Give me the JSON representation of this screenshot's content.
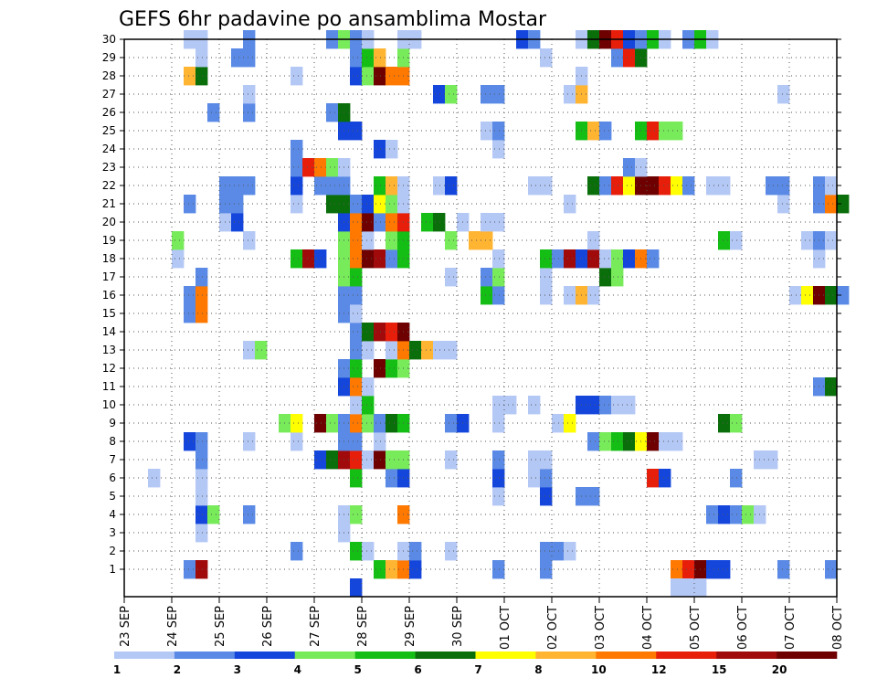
{
  "chart_data": {
    "type": "heatmap",
    "title": "GEFS 6hr padavine po ansamblima Mostar",
    "x_tick_labels": [
      "23 SEP",
      "24 SEP",
      "25 SEP",
      "26 SEP",
      "27 SEP",
      "28 SEP",
      "29 SEP",
      "30 SEP",
      "01 OCT",
      "02 OCT",
      "03 OCT",
      "04 OCT",
      "05 OCT",
      "06 OCT",
      "07 OCT",
      "08 OCT"
    ],
    "y_tick_labels": [
      "1",
      "2",
      "3",
      "4",
      "5",
      "6",
      "7",
      "8",
      "9",
      "10",
      "11",
      "12",
      "13",
      "14",
      "15",
      "16",
      "17",
      "18",
      "19",
      "20",
      "21",
      "22",
      "23",
      "24",
      "25",
      "26",
      "27",
      "28",
      "29",
      "30"
    ],
    "x_range": [
      "23 SEP",
      "08 OCT"
    ],
    "y_range": [
      0,
      30
    ],
    "steps_per_day": 4,
    "grid": "dotted",
    "colorbar": {
      "position": "bottom",
      "labels": [
        "1",
        "2",
        "3",
        "4",
        "5",
        "6",
        "7",
        "8",
        "10",
        "12",
        "15",
        "20"
      ],
      "colors": [
        "#b4c8f5",
        "#5a8ae6",
        "#1446dc",
        "#78eb5a",
        "#14be14",
        "#0a6e0a",
        "#ffff00",
        "#ffb432",
        "#ff7800",
        "#e61e0a",
        "#a00a0a",
        "#6e0000"
      ]
    },
    "cells": [
      [
        1,
        5,
        1
      ],
      [
        1,
        6,
        10
      ],
      [
        1,
        21,
        4
      ],
      [
        1,
        22,
        7
      ],
      [
        1,
        23,
        8
      ],
      [
        1,
        24,
        2
      ],
      [
        1,
        31,
        1
      ],
      [
        1,
        35,
        1
      ],
      [
        1,
        46,
        8
      ],
      [
        1,
        47,
        9
      ],
      [
        1,
        48,
        11
      ],
      [
        1,
        49,
        2
      ],
      [
        1,
        50,
        2
      ],
      [
        1,
        55,
        1
      ],
      [
        1,
        59,
        1
      ],
      [
        2,
        14,
        1
      ],
      [
        2,
        19,
        4
      ],
      [
        2,
        20,
        0
      ],
      [
        2,
        23,
        0
      ],
      [
        2,
        24,
        1
      ],
      [
        2,
        27,
        0
      ],
      [
        2,
        35,
        1
      ],
      [
        2,
        36,
        1
      ],
      [
        2,
        37,
        0
      ],
      [
        3,
        6,
        0
      ],
      [
        3,
        18,
        0
      ],
      [
        4,
        6,
        2
      ],
      [
        4,
        7,
        3
      ],
      [
        4,
        10,
        1
      ],
      [
        4,
        18,
        0
      ],
      [
        4,
        19,
        3
      ],
      [
        4,
        23,
        8
      ],
      [
        4,
        49,
        1
      ],
      [
        4,
        50,
        2
      ],
      [
        4,
        51,
        1
      ],
      [
        4,
        52,
        3
      ],
      [
        4,
        53,
        0
      ],
      [
        5,
        6,
        0
      ],
      [
        5,
        31,
        0
      ],
      [
        5,
        35,
        2
      ],
      [
        5,
        38,
        1
      ],
      [
        5,
        39,
        1
      ],
      [
        6,
        2,
        0
      ],
      [
        6,
        6,
        0
      ],
      [
        6,
        19,
        4
      ],
      [
        6,
        22,
        1
      ],
      [
        6,
        23,
        2
      ],
      [
        6,
        31,
        2
      ],
      [
        6,
        34,
        0
      ],
      [
        6,
        35,
        1
      ],
      [
        6,
        44,
        9
      ],
      [
        6,
        45,
        2
      ],
      [
        6,
        51,
        1
      ],
      [
        7,
        6,
        1
      ],
      [
        7,
        16,
        2
      ],
      [
        7,
        17,
        5
      ],
      [
        7,
        18,
        10
      ],
      [
        7,
        19,
        9
      ],
      [
        7,
        20,
        0
      ],
      [
        7,
        21,
        11
      ],
      [
        7,
        22,
        3
      ],
      [
        7,
        23,
        3
      ],
      [
        7,
        27,
        0
      ],
      [
        7,
        31,
        1
      ],
      [
        7,
        34,
        0
      ],
      [
        7,
        35,
        0
      ],
      [
        7,
        53,
        0
      ],
      [
        7,
        54,
        0
      ],
      [
        8,
        5,
        2
      ],
      [
        8,
        6,
        1
      ],
      [
        8,
        10,
        0
      ],
      [
        8,
        14,
        0
      ],
      [
        8,
        18,
        1
      ],
      [
        8,
        19,
        1
      ],
      [
        8,
        21,
        0
      ],
      [
        8,
        39,
        1
      ],
      [
        8,
        40,
        3
      ],
      [
        8,
        41,
        4
      ],
      [
        8,
        42,
        5
      ],
      [
        8,
        43,
        6
      ],
      [
        8,
        44,
        11
      ],
      [
        8,
        45,
        0
      ],
      [
        8,
        46,
        0
      ],
      [
        9,
        13,
        3
      ],
      [
        9,
        14,
        6
      ],
      [
        9,
        16,
        11
      ],
      [
        9,
        17,
        3
      ],
      [
        9,
        18,
        1
      ],
      [
        9,
        19,
        8
      ],
      [
        9,
        20,
        3
      ],
      [
        9,
        21,
        1
      ],
      [
        9,
        22,
        5
      ],
      [
        9,
        23,
        4
      ],
      [
        9,
        27,
        1
      ],
      [
        9,
        28,
        2
      ],
      [
        9,
        31,
        0
      ],
      [
        9,
        36,
        0
      ],
      [
        9,
        37,
        6
      ],
      [
        9,
        50,
        5
      ],
      [
        9,
        51,
        3
      ],
      [
        10,
        19,
        0
      ],
      [
        10,
        20,
        4
      ],
      [
        10,
        31,
        0
      ],
      [
        10,
        32,
        0
      ],
      [
        10,
        34,
        0
      ],
      [
        10,
        38,
        2
      ],
      [
        10,
        39,
        2
      ],
      [
        10,
        40,
        1
      ],
      [
        10,
        41,
        0
      ],
      [
        10,
        42,
        0
      ],
      [
        11,
        18,
        2
      ],
      [
        11,
        19,
        8
      ],
      [
        11,
        20,
        0
      ],
      [
        11,
        58,
        1
      ],
      [
        11,
        59,
        5
      ],
      [
        12,
        18,
        1
      ],
      [
        12,
        19,
        4
      ],
      [
        12,
        21,
        11
      ],
      [
        12,
        22,
        4
      ],
      [
        12,
        23,
        3
      ],
      [
        13,
        10,
        0
      ],
      [
        13,
        11,
        3
      ],
      [
        13,
        19,
        1
      ],
      [
        13,
        20,
        0
      ],
      [
        13,
        22,
        0
      ],
      [
        13,
        23,
        8
      ],
      [
        13,
        24,
        5
      ],
      [
        13,
        25,
        7
      ],
      [
        13,
        26,
        0
      ],
      [
        13,
        27,
        0
      ],
      [
        14,
        19,
        1
      ],
      [
        14,
        20,
        5
      ],
      [
        14,
        21,
        10
      ],
      [
        14,
        22,
        9
      ],
      [
        14,
        23,
        11
      ],
      [
        15,
        5,
        1
      ],
      [
        15,
        6,
        8
      ],
      [
        15,
        18,
        1
      ],
      [
        15,
        19,
        0
      ],
      [
        16,
        5,
        1
      ],
      [
        16,
        6,
        8
      ],
      [
        16,
        18,
        1
      ],
      [
        16,
        19,
        1
      ],
      [
        16,
        30,
        4
      ],
      [
        16,
        31,
        1
      ],
      [
        16,
        35,
        0
      ],
      [
        16,
        37,
        0
      ],
      [
        16,
        38,
        7
      ],
      [
        16,
        39,
        0
      ],
      [
        16,
        56,
        0
      ],
      [
        16,
        57,
        6
      ],
      [
        16,
        58,
        11
      ],
      [
        16,
        59,
        5
      ],
      [
        16,
        60,
        1
      ],
      [
        17,
        6,
        1
      ],
      [
        17,
        18,
        3
      ],
      [
        17,
        19,
        4
      ],
      [
        17,
        27,
        0
      ],
      [
        17,
        30,
        1
      ],
      [
        17,
        31,
        3
      ],
      [
        17,
        35,
        0
      ],
      [
        17,
        40,
        5
      ],
      [
        17,
        41,
        3
      ],
      [
        18,
        4,
        0
      ],
      [
        18,
        14,
        4
      ],
      [
        18,
        15,
        10
      ],
      [
        18,
        16,
        2
      ],
      [
        18,
        18,
        3
      ],
      [
        18,
        19,
        8
      ],
      [
        18,
        20,
        11
      ],
      [
        18,
        21,
        10
      ],
      [
        18,
        22,
        1
      ],
      [
        18,
        23,
        4
      ],
      [
        18,
        31,
        0
      ],
      [
        18,
        35,
        4
      ],
      [
        18,
        36,
        1
      ],
      [
        18,
        37,
        10
      ],
      [
        18,
        38,
        2
      ],
      [
        18,
        39,
        10
      ],
      [
        18,
        40,
        0
      ],
      [
        18,
        41,
        3
      ],
      [
        18,
        42,
        2
      ],
      [
        18,
        43,
        8
      ],
      [
        18,
        44,
        1
      ],
      [
        18,
        58,
        0
      ],
      [
        19,
        4,
        3
      ],
      [
        19,
        10,
        0
      ],
      [
        19,
        18,
        3
      ],
      [
        19,
        19,
        8
      ],
      [
        19,
        20,
        0
      ],
      [
        19,
        22,
        3
      ],
      [
        19,
        23,
        4
      ],
      [
        19,
        27,
        3
      ],
      [
        19,
        29,
        7
      ],
      [
        19,
        30,
        7
      ],
      [
        19,
        39,
        0
      ],
      [
        19,
        50,
        4
      ],
      [
        19,
        51,
        0
      ],
      [
        19,
        57,
        0
      ],
      [
        19,
        58,
        1
      ],
      [
        19,
        59,
        0
      ],
      [
        20,
        8,
        0
      ],
      [
        20,
        9,
        2
      ],
      [
        20,
        18,
        2
      ],
      [
        20,
        19,
        8
      ],
      [
        20,
        20,
        11
      ],
      [
        20,
        21,
        1
      ],
      [
        20,
        22,
        8
      ],
      [
        20,
        23,
        9
      ],
      [
        20,
        25,
        4
      ],
      [
        20,
        26,
        5
      ],
      [
        20,
        28,
        0
      ],
      [
        20,
        30,
        0
      ],
      [
        20,
        31,
        0
      ],
      [
        21,
        5,
        1
      ],
      [
        21,
        8,
        1
      ],
      [
        21,
        9,
        1
      ],
      [
        21,
        14,
        0
      ],
      [
        21,
        17,
        5
      ],
      [
        21,
        18,
        5
      ],
      [
        21,
        19,
        1
      ],
      [
        21,
        20,
        2
      ],
      [
        21,
        21,
        6
      ],
      [
        21,
        22,
        3
      ],
      [
        21,
        23,
        0
      ],
      [
        21,
        37,
        0
      ],
      [
        21,
        55,
        0
      ],
      [
        21,
        58,
        1
      ],
      [
        21,
        59,
        8
      ],
      [
        21,
        60,
        5
      ],
      [
        22,
        8,
        1
      ],
      [
        22,
        9,
        1
      ],
      [
        22,
        10,
        1
      ],
      [
        22,
        14,
        2
      ],
      [
        22,
        16,
        1
      ],
      [
        22,
        17,
        1
      ],
      [
        22,
        18,
        1
      ],
      [
        22,
        21,
        4
      ],
      [
        22,
        22,
        7
      ],
      [
        22,
        23,
        0
      ],
      [
        22,
        26,
        0
      ],
      [
        22,
        27,
        2
      ],
      [
        22,
        34,
        0
      ],
      [
        22,
        35,
        0
      ],
      [
        22,
        39,
        5
      ],
      [
        22,
        40,
        1
      ],
      [
        22,
        41,
        9
      ],
      [
        22,
        42,
        6
      ],
      [
        22,
        43,
        11
      ],
      [
        22,
        44,
        11
      ],
      [
        22,
        45,
        9
      ],
      [
        22,
        46,
        6
      ],
      [
        22,
        47,
        1
      ],
      [
        22,
        49,
        0
      ],
      [
        22,
        50,
        0
      ],
      [
        22,
        54,
        1
      ],
      [
        22,
        55,
        1
      ],
      [
        22,
        58,
        1
      ],
      [
        22,
        59,
        0
      ],
      [
        23,
        14,
        1
      ],
      [
        23,
        15,
        9
      ],
      [
        23,
        16,
        8
      ],
      [
        23,
        17,
        3
      ],
      [
        23,
        18,
        0
      ],
      [
        23,
        42,
        1
      ],
      [
        23,
        43,
        0
      ],
      [
        24,
        14,
        1
      ],
      [
        24,
        21,
        2
      ],
      [
        24,
        22,
        0
      ],
      [
        24,
        31,
        0
      ],
      [
        25,
        18,
        2
      ],
      [
        25,
        19,
        2
      ],
      [
        25,
        30,
        0
      ],
      [
        25,
        31,
        1
      ],
      [
        25,
        38,
        4
      ],
      [
        25,
        39,
        7
      ],
      [
        25,
        40,
        1
      ],
      [
        25,
        43,
        4
      ],
      [
        25,
        44,
        9
      ],
      [
        25,
        45,
        3
      ],
      [
        25,
        46,
        3
      ],
      [
        26,
        7,
        1
      ],
      [
        26,
        10,
        1
      ],
      [
        26,
        17,
        1
      ],
      [
        26,
        18,
        5
      ],
      [
        27,
        10,
        0
      ],
      [
        27,
        26,
        2
      ],
      [
        27,
        27,
        3
      ],
      [
        27,
        30,
        1
      ],
      [
        27,
        31,
        1
      ],
      [
        27,
        37,
        0
      ],
      [
        27,
        38,
        7
      ],
      [
        27,
        55,
        0
      ],
      [
        28,
        5,
        7
      ],
      [
        28,
        6,
        5
      ],
      [
        28,
        14,
        0
      ],
      [
        28,
        19,
        2
      ],
      [
        28,
        20,
        3
      ],
      [
        28,
        21,
        11
      ],
      [
        28,
        22,
        8
      ],
      [
        28,
        23,
        8
      ],
      [
        28,
        38,
        0
      ],
      [
        29,
        6,
        0
      ],
      [
        29,
        9,
        1
      ],
      [
        29,
        10,
        1
      ],
      [
        29,
        19,
        1
      ],
      [
        29,
        20,
        4
      ],
      [
        29,
        21,
        7
      ],
      [
        29,
        23,
        3
      ],
      [
        29,
        35,
        0
      ],
      [
        29,
        41,
        1
      ],
      [
        29,
        42,
        9
      ],
      [
        29,
        43,
        5
      ],
      [
        30,
        5,
        0
      ],
      [
        30,
        6,
        0
      ],
      [
        30,
        10,
        1
      ],
      [
        30,
        17,
        1
      ],
      [
        30,
        18,
        3
      ],
      [
        30,
        19,
        1
      ],
      [
        30,
        20,
        0
      ],
      [
        30,
        23,
        0
      ],
      [
        30,
        24,
        0
      ],
      [
        30,
        33,
        2
      ],
      [
        30,
        34,
        1
      ],
      [
        30,
        38,
        0
      ],
      [
        30,
        39,
        5
      ],
      [
        30,
        40,
        11
      ],
      [
        30,
        41,
        9
      ],
      [
        30,
        42,
        2
      ],
      [
        30,
        43,
        1
      ],
      [
        30,
        44,
        4
      ],
      [
        30,
        45,
        0
      ],
      [
        30,
        47,
        1
      ],
      [
        30,
        48,
        4
      ],
      [
        30,
        49,
        0
      ],
      [
        0,
        19,
        2
      ],
      [
        0,
        46,
        0
      ],
      [
        0,
        47,
        0
      ],
      [
        0,
        48,
        0
      ]
    ]
  }
}
